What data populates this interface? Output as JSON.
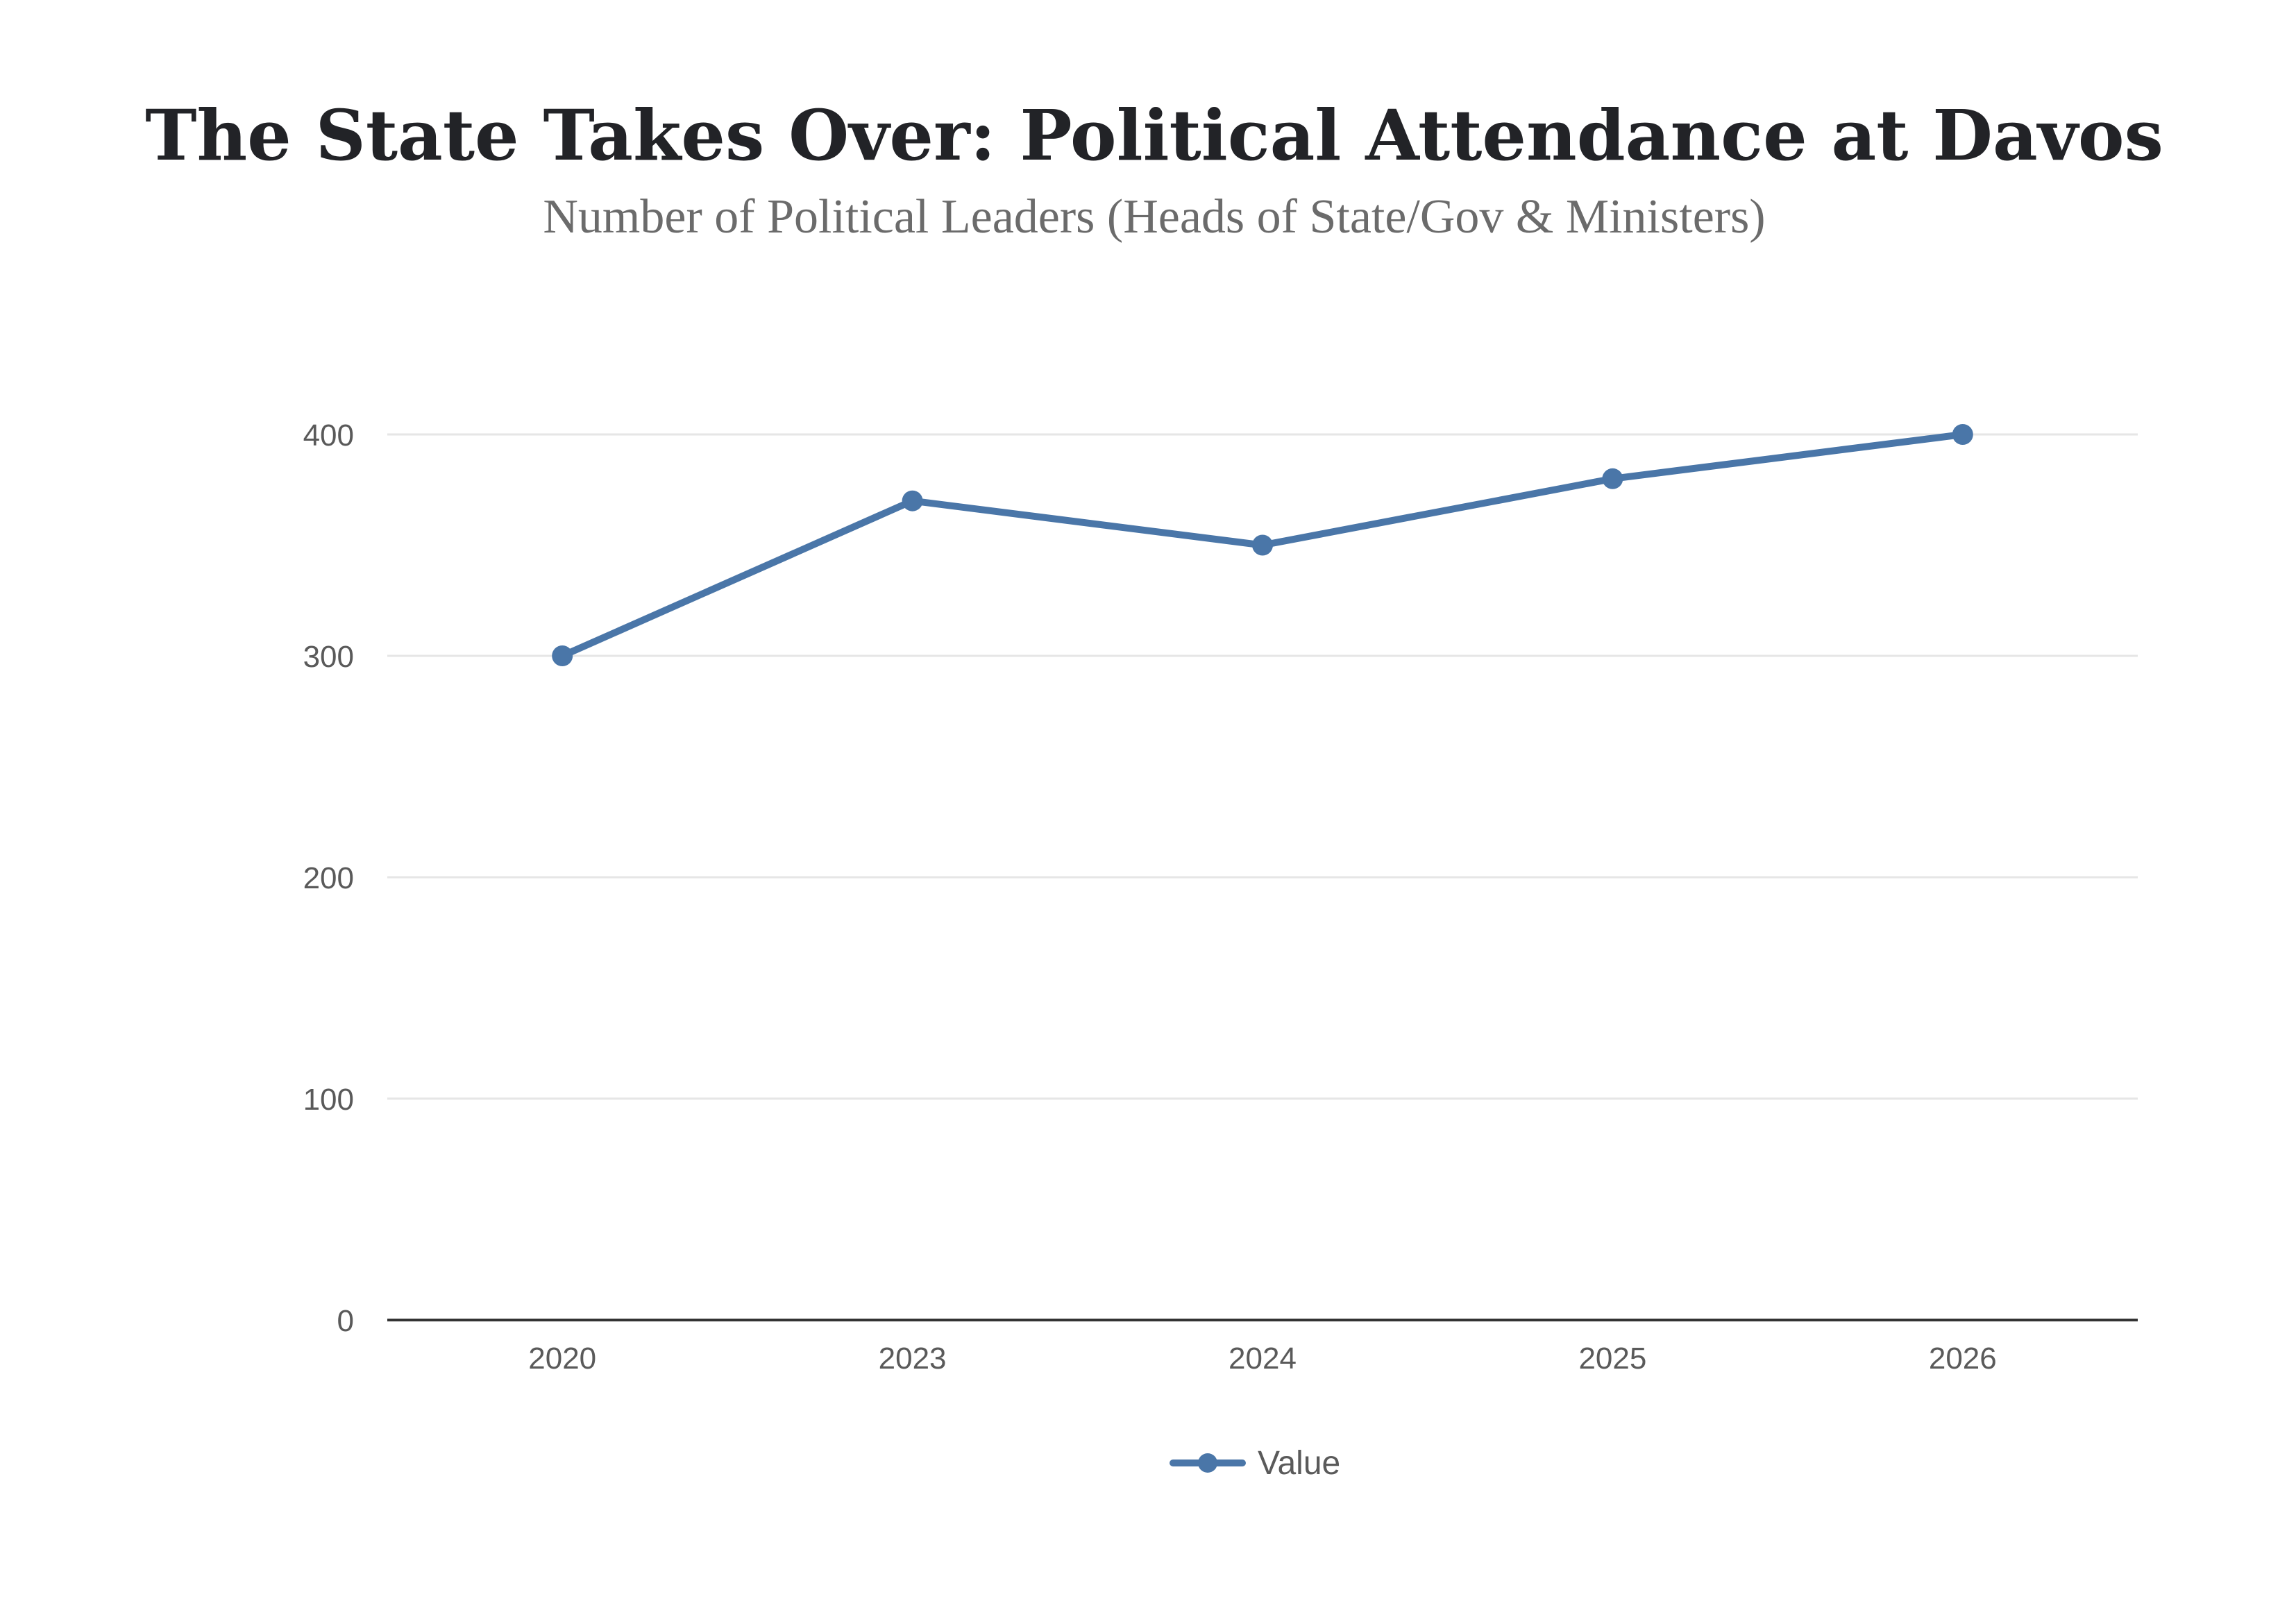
{
  "chart_data": {
    "type": "line",
    "title": "The State Takes Over: Political Attendance at Davos",
    "subtitle": "Number of Political Leaders (Heads of State/Gov & Ministers)",
    "xlabel": "",
    "ylabel": "",
    "categories": [
      "2020",
      "2023",
      "2024",
      "2025",
      "2026"
    ],
    "series": [
      {
        "name": "Value",
        "values": [
          300,
          370,
          350,
          380,
          400
        ],
        "color": "#4a76a8"
      }
    ],
    "ylim": [
      0,
      400
    ],
    "yticks": [
      0,
      100,
      200,
      300,
      400
    ],
    "ytick_labels": [
      "0",
      "100",
      "200",
      "300",
      "400"
    ],
    "grid": true,
    "legend": "bottom-center",
    "colors": {
      "grid": "#e6e6e6",
      "axis": "#333333",
      "title": "#222327",
      "subtitle": "#6b6b6b",
      "ticks": "#5a5a5a"
    }
  }
}
